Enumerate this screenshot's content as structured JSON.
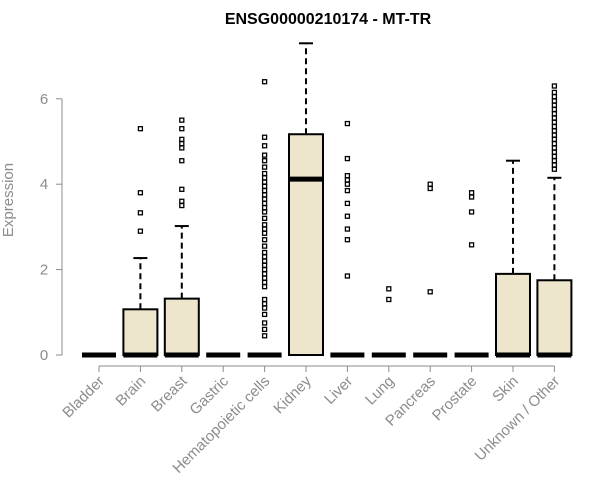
{
  "chart_data": {
    "type": "boxplot",
    "title": "ENSG00000210174 - MT-TR",
    "xlabel": "",
    "ylabel": "Expression",
    "ylim": [
      0,
      7.3
    ],
    "yticks": [
      0,
      2,
      4,
      6
    ],
    "box_color": "#ede6cc",
    "categories": [
      "Bladder",
      "Brain",
      "Breast",
      "Gastric",
      "Hematopoietic cells",
      "Kidney",
      "Liver",
      "Lung",
      "Pancreas",
      "Prostate",
      "Skin",
      "Unknown / Other"
    ],
    "boxes": [
      {
        "q1": 0,
        "median": 0,
        "q3": 0,
        "whisker_low": 0,
        "whisker_high": 0,
        "outliers": []
      },
      {
        "q1": 0,
        "median": 0,
        "q3": 1.07,
        "whisker_low": 0,
        "whisker_high": 2.27,
        "outliers": [
          2.9,
          3.33,
          3.8,
          5.3
        ]
      },
      {
        "q1": 0,
        "median": 0,
        "q3": 1.32,
        "whisker_low": 0,
        "whisker_high": 3.02,
        "outliers": [
          3.5,
          3.6,
          3.88,
          4.55,
          4.85,
          4.95,
          5.05,
          5.3,
          5.5
        ]
      },
      {
        "q1": 0,
        "median": 0,
        "q3": 0,
        "whisker_low": 0,
        "whisker_high": 0,
        "outliers": []
      },
      {
        "q1": 0,
        "median": 0,
        "q3": 0,
        "whisker_low": 0,
        "whisker_high": 0,
        "outliers": [
          0.45,
          0.6,
          0.75,
          0.95,
          1.1,
          1.2,
          1.3,
          1.6,
          1.7,
          1.8,
          1.9,
          2.0,
          2.1,
          2.2,
          2.3,
          2.4,
          2.55,
          2.7,
          2.85,
          2.95,
          3.05,
          3.2,
          3.35,
          3.45,
          3.55,
          3.65,
          3.75,
          3.85,
          3.95,
          4.05,
          4.15,
          4.25,
          4.4,
          4.55,
          4.68,
          4.9,
          5.1,
          6.4
        ]
      },
      {
        "q1": 0,
        "median": 4.12,
        "q3": 5.17,
        "whisker_low": 0,
        "whisker_high": 7.3,
        "outliers": []
      },
      {
        "q1": 0,
        "median": 0,
        "q3": 0,
        "whisker_low": 0,
        "whisker_high": 0,
        "outliers": [
          1.85,
          2.7,
          2.95,
          3.25,
          3.55,
          3.85,
          4.0,
          4.1,
          4.2,
          4.6,
          5.42
        ]
      },
      {
        "q1": 0,
        "median": 0,
        "q3": 0,
        "whisker_low": 0,
        "whisker_high": 0,
        "outliers": [
          1.3,
          1.55
        ]
      },
      {
        "q1": 0,
        "median": 0,
        "q3": 0,
        "whisker_low": 0,
        "whisker_high": 0,
        "outliers": [
          1.48,
          3.9,
          4.0
        ]
      },
      {
        "q1": 0,
        "median": 0,
        "q3": 0,
        "whisker_low": 0,
        "whisker_high": 0,
        "outliers": [
          2.58,
          3.35,
          3.7,
          3.8
        ]
      },
      {
        "q1": 0,
        "median": 0,
        "q3": 1.9,
        "whisker_low": 0,
        "whisker_high": 4.55,
        "outliers": []
      },
      {
        "q1": 0,
        "median": 0,
        "q3": 1.75,
        "whisker_low": 0,
        "whisker_high": 4.15,
        "outliers": [
          4.35,
          4.45,
          4.55,
          4.65,
          4.75,
          4.85,
          4.95,
          5.05,
          5.15,
          5.25,
          5.35,
          5.45,
          5.55,
          5.65,
          5.75,
          5.85,
          5.95,
          6.05,
          6.15,
          6.3
        ]
      }
    ]
  }
}
